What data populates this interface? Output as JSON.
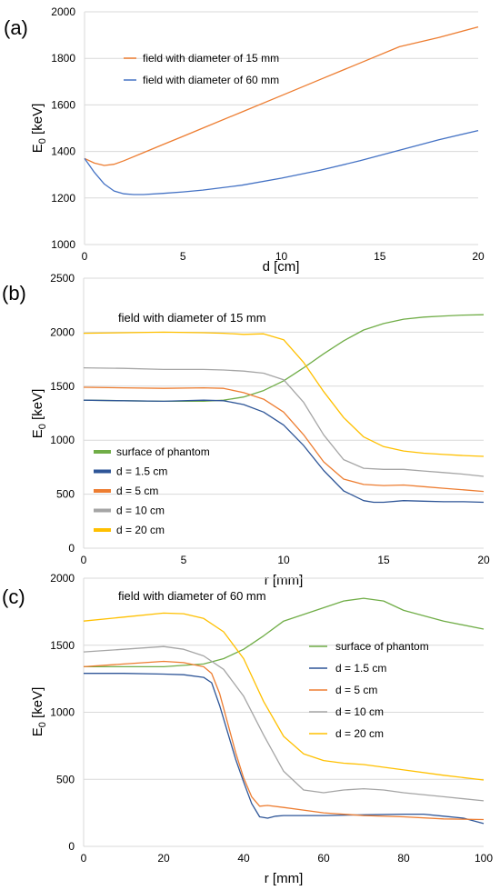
{
  "colors": {
    "orange": "#ED7D31",
    "blue": "#4472C4",
    "green": "#70AD47",
    "gray": "#A5A5A5",
    "gold": "#FFC000",
    "dark_blue": "#2E5597"
  },
  "chart_data": [
    {
      "type": "line",
      "panel": "(a)",
      "xlabel": "d [cm]",
      "ylabel_main": "E",
      "ylabel_sub": "0",
      "ylabel_unit": " [keV]",
      "xlim": [
        0,
        20
      ],
      "ylim": [
        1000,
        2000
      ],
      "xticks": [
        0,
        5,
        10,
        15,
        20
      ],
      "yticks": [
        1000,
        1200,
        1400,
        1600,
        1800,
        2000
      ],
      "grid": "horizontal",
      "legend_position": "top-left",
      "series": [
        {
          "name": "field with diameter of 15 mm",
          "color": "orange",
          "x": [
            0,
            0.5,
            1,
            1.5,
            2,
            3,
            4,
            5,
            6,
            8,
            10,
            12,
            14,
            16,
            18,
            20
          ],
          "y": [
            1370,
            1350,
            1340,
            1345,
            1360,
            1395,
            1430,
            1465,
            1500,
            1570,
            1640,
            1710,
            1780,
            1850,
            1890,
            1935
          ]
        },
        {
          "name": "field with diameter of 60 mm",
          "color": "blue",
          "x": [
            0,
            0.5,
            1,
            1.5,
            2,
            2.5,
            3,
            4,
            5,
            6,
            8,
            10,
            12,
            14,
            16,
            18,
            20
          ],
          "y": [
            1370,
            1310,
            1260,
            1230,
            1218,
            1215,
            1215,
            1220,
            1226,
            1234,
            1255,
            1285,
            1320,
            1360,
            1405,
            1450,
            1490
          ]
        }
      ]
    },
    {
      "type": "line",
      "panel": "(b)",
      "annotation": "field with diameter of 15 mm",
      "xlabel": "r [mm]",
      "ylabel_main": "E",
      "ylabel_sub": "0",
      "ylabel_unit": " [keV]",
      "xlim": [
        0,
        20
      ],
      "ylim": [
        0,
        2500
      ],
      "xticks": [
        0,
        5,
        10,
        15,
        20
      ],
      "yticks": [
        0,
        500,
        1000,
        1500,
        2000,
        2500
      ],
      "grid": "horizontal",
      "legend_position": "bottom-left",
      "series": [
        {
          "name": "surface of phantom",
          "color": "green",
          "x": [
            0,
            2,
            4,
            6,
            7,
            8,
            9,
            10,
            11,
            12,
            13,
            14,
            15,
            16,
            17,
            18,
            19,
            20
          ],
          "y": [
            1370,
            1365,
            1360,
            1360,
            1370,
            1400,
            1460,
            1550,
            1670,
            1800,
            1920,
            2020,
            2080,
            2120,
            2140,
            2150,
            2158,
            2162
          ]
        },
        {
          "name": "d = 1.5 cm",
          "color": "dark_blue",
          "x": [
            0,
            2,
            4,
            6,
            7,
            8,
            9,
            10,
            11,
            12,
            13,
            14,
            14.5,
            15,
            16,
            17,
            18,
            19,
            20
          ],
          "y": [
            1370,
            1365,
            1360,
            1370,
            1365,
            1330,
            1260,
            1140,
            950,
            720,
            530,
            440,
            425,
            425,
            440,
            435,
            430,
            430,
            425
          ]
        },
        {
          "name": "d = 5 cm",
          "color": "orange",
          "x": [
            0,
            2,
            4,
            6,
            7,
            8,
            9,
            10,
            11,
            12,
            13,
            14,
            15,
            16,
            17,
            18,
            19,
            20
          ],
          "y": [
            1490,
            1485,
            1480,
            1485,
            1480,
            1440,
            1380,
            1260,
            1050,
            800,
            640,
            590,
            580,
            585,
            570,
            555,
            540,
            525
          ]
        },
        {
          "name": "d = 10 cm",
          "color": "gray",
          "x": [
            0,
            2,
            4,
            6,
            7,
            8,
            9,
            10,
            11,
            12,
            13,
            14,
            15,
            16,
            17,
            18,
            19,
            20
          ],
          "y": [
            1670,
            1665,
            1655,
            1655,
            1650,
            1640,
            1620,
            1560,
            1350,
            1050,
            820,
            740,
            730,
            730,
            715,
            700,
            685,
            665
          ]
        },
        {
          "name": "d = 20 cm",
          "color": "gold",
          "x": [
            0,
            2,
            4,
            6,
            7,
            8,
            9,
            10,
            11,
            12,
            13,
            14,
            15,
            16,
            17,
            18,
            19,
            20
          ],
          "y": [
            1990,
            1995,
            2000,
            1995,
            1990,
            1980,
            1985,
            1930,
            1720,
            1450,
            1210,
            1030,
            940,
            900,
            880,
            868,
            858,
            850
          ]
        }
      ]
    },
    {
      "type": "line",
      "panel": "(c)",
      "annotation": "field with diameter of 60 mm",
      "xlabel": "r [mm]",
      "ylabel_main": "E",
      "ylabel_sub": "0",
      "ylabel_unit": " [keV]",
      "xlim": [
        0,
        100
      ],
      "ylim": [
        0,
        2000
      ],
      "xticks": [
        0,
        20,
        40,
        60,
        80,
        100
      ],
      "yticks": [
        0,
        500,
        1000,
        1500,
        2000
      ],
      "grid": "horizontal",
      "legend_position": "right",
      "series": [
        {
          "name": "surface of phantom",
          "color": "green",
          "x": [
            0,
            10,
            20,
            30,
            35,
            40,
            45,
            50,
            60,
            65,
            70,
            75,
            80,
            90,
            100
          ],
          "y": [
            1340,
            1340,
            1340,
            1360,
            1400,
            1470,
            1570,
            1680,
            1780,
            1830,
            1850,
            1830,
            1760,
            1680,
            1620
          ]
        },
        {
          "name": "d = 1.5 cm",
          "color": "dark_blue",
          "x": [
            0,
            10,
            20,
            25,
            30,
            32,
            34,
            36,
            38,
            40,
            42,
            44,
            46,
            48,
            50,
            60,
            70,
            80,
            85,
            90,
            95,
            100
          ],
          "y": [
            1290,
            1290,
            1285,
            1280,
            1260,
            1220,
            1050,
            850,
            650,
            480,
            320,
            220,
            210,
            225,
            230,
            230,
            235,
            240,
            240,
            225,
            210,
            170
          ]
        },
        {
          "name": "d = 5 cm",
          "color": "orange",
          "x": [
            0,
            10,
            20,
            25,
            30,
            32,
            34,
            36,
            38,
            40,
            42,
            44,
            46,
            50,
            60,
            70,
            80,
            90,
            100
          ],
          "y": [
            1340,
            1360,
            1380,
            1370,
            1340,
            1290,
            1140,
            920,
            700,
            510,
            370,
            300,
            305,
            290,
            250,
            230,
            220,
            205,
            200
          ]
        },
        {
          "name": "d = 10 cm",
          "color": "gray",
          "x": [
            0,
            10,
            20,
            25,
            30,
            35,
            40,
            45,
            50,
            55,
            60,
            65,
            70,
            75,
            80,
            90,
            100
          ],
          "y": [
            1450,
            1470,
            1490,
            1470,
            1420,
            1320,
            1120,
            830,
            560,
            420,
            400,
            420,
            430,
            420,
            400,
            370,
            340
          ]
        },
        {
          "name": "d = 20 cm",
          "color": "gold",
          "x": [
            0,
            10,
            20,
            25,
            30,
            35,
            40,
            45,
            50,
            55,
            60,
            65,
            70,
            80,
            90,
            100
          ],
          "y": [
            1680,
            1710,
            1740,
            1735,
            1700,
            1600,
            1400,
            1080,
            820,
            690,
            640,
            620,
            610,
            570,
            530,
            495
          ]
        }
      ]
    }
  ]
}
